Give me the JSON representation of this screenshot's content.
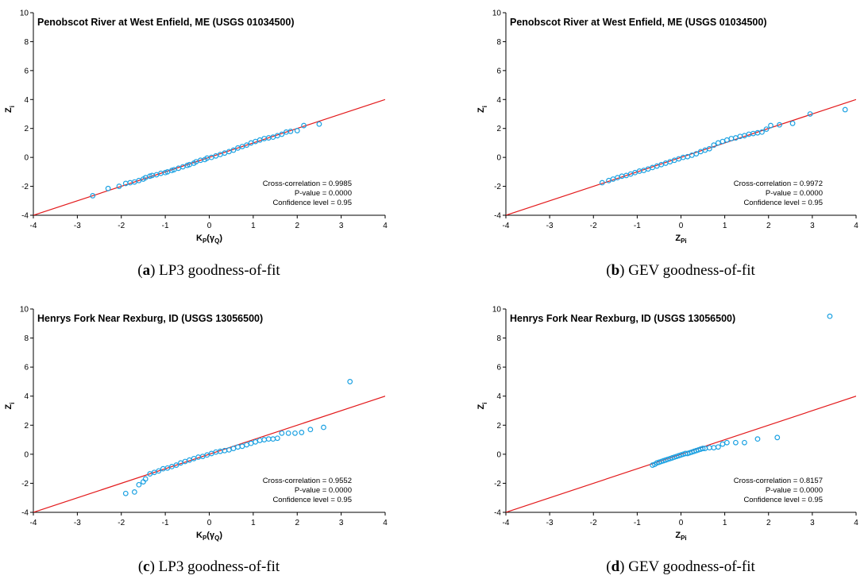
{
  "chart_data": [
    {
      "type": "scatter",
      "panel": "a",
      "title": "Penobscot River at West Enfield, ME (USGS 01034500)",
      "ylabel": "Z",
      "ylabel_sub": "i",
      "xlabel": "K",
      "xlabel_sub": "P",
      "xlabel_rest": "(γ",
      "xlabel_sub2": "Q",
      "xlabel_end": ")",
      "xlim": [
        -4,
        4
      ],
      "ylim": [
        -4,
        10
      ],
      "xticks": [
        "-4",
        "-3",
        "-2",
        "-1",
        "0",
        "1",
        "2",
        "3",
        "4"
      ],
      "yticks": [
        "-4",
        "-2",
        "0",
        "2",
        "4",
        "6",
        "8",
        "10"
      ],
      "stats": [
        "Cross-correlation = 0.9985",
        "P-value = 0.0000",
        "Confidence level = 0.95"
      ],
      "caption_label": "(a)",
      "caption_text": " LP3 goodness-of-fit",
      "ref_line": [
        [
          -4,
          -4
        ],
        [
          4,
          4
        ]
      ],
      "points": [
        [
          -2.65,
          -2.65
        ],
        [
          -2.3,
          -2.15
        ],
        [
          -2.05,
          -2.0
        ],
        [
          -1.9,
          -1.8
        ],
        [
          -1.8,
          -1.75
        ],
        [
          -1.7,
          -1.7
        ],
        [
          -1.6,
          -1.6
        ],
        [
          -1.5,
          -1.5
        ],
        [
          -1.45,
          -1.4
        ],
        [
          -1.35,
          -1.3
        ],
        [
          -1.3,
          -1.25
        ],
        [
          -1.2,
          -1.2
        ],
        [
          -1.1,
          -1.1
        ],
        [
          -1.0,
          -1.05
        ],
        [
          -0.95,
          -1.0
        ],
        [
          -0.85,
          -0.9
        ],
        [
          -0.8,
          -0.85
        ],
        [
          -0.7,
          -0.75
        ],
        [
          -0.6,
          -0.65
        ],
        [
          -0.5,
          -0.55
        ],
        [
          -0.45,
          -0.5
        ],
        [
          -0.35,
          -0.4
        ],
        [
          -0.3,
          -0.3
        ],
        [
          -0.2,
          -0.2
        ],
        [
          -0.1,
          -0.15
        ],
        [
          -0.05,
          -0.05
        ],
        [
          0.05,
          0.0
        ],
        [
          0.15,
          0.1
        ],
        [
          0.25,
          0.2
        ],
        [
          0.35,
          0.3
        ],
        [
          0.45,
          0.4
        ],
        [
          0.55,
          0.5
        ],
        [
          0.65,
          0.65
        ],
        [
          0.75,
          0.75
        ],
        [
          0.85,
          0.85
        ],
        [
          0.95,
          1.0
        ],
        [
          1.05,
          1.1
        ],
        [
          1.15,
          1.2
        ],
        [
          1.25,
          1.3
        ],
        [
          1.35,
          1.35
        ],
        [
          1.45,
          1.4
        ],
        [
          1.55,
          1.5
        ],
        [
          1.65,
          1.6
        ],
        [
          1.75,
          1.75
        ],
        [
          1.85,
          1.8
        ],
        [
          2.0,
          1.85
        ],
        [
          2.15,
          2.2
        ],
        [
          2.5,
          2.3
        ]
      ]
    },
    {
      "type": "scatter",
      "panel": "b",
      "title": "Penobscot River at West Enfield, ME (USGS 01034500)",
      "ylabel": "Z",
      "ylabel_sub": "i",
      "xlabel": "Z",
      "xlabel_sub": "Pi",
      "xlabel_rest": "",
      "xlabel_sub2": "",
      "xlabel_end": "",
      "xlim": [
        -4,
        4
      ],
      "ylim": [
        -4,
        10
      ],
      "xticks": [
        "-4",
        "-3",
        "-2",
        "-1",
        "0",
        "1",
        "2",
        "3",
        "4"
      ],
      "yticks": [
        "-4",
        "-2",
        "0",
        "2",
        "4",
        "6",
        "8",
        "10"
      ],
      "stats": [
        "Cross-correlation = 0.9972",
        "P-value = 0.0000",
        "Confidence level = 0.95"
      ],
      "caption_label": "(b)",
      "caption_text": " GEV goodness-of-fit",
      "ref_line": [
        [
          -4,
          -4
        ],
        [
          4,
          4
        ]
      ],
      "points": [
        [
          -1.8,
          -1.75
        ],
        [
          -1.65,
          -1.6
        ],
        [
          -1.55,
          -1.5
        ],
        [
          -1.45,
          -1.4
        ],
        [
          -1.35,
          -1.3
        ],
        [
          -1.25,
          -1.25
        ],
        [
          -1.15,
          -1.15
        ],
        [
          -1.05,
          -1.05
        ],
        [
          -0.95,
          -0.95
        ],
        [
          -0.85,
          -0.9
        ],
        [
          -0.75,
          -0.8
        ],
        [
          -0.65,
          -0.7
        ],
        [
          -0.55,
          -0.6
        ],
        [
          -0.45,
          -0.5
        ],
        [
          -0.35,
          -0.4
        ],
        [
          -0.25,
          -0.3
        ],
        [
          -0.15,
          -0.2
        ],
        [
          -0.05,
          -0.1
        ],
        [
          0.05,
          0.0
        ],
        [
          0.15,
          0.05
        ],
        [
          0.25,
          0.15
        ],
        [
          0.35,
          0.25
        ],
        [
          0.45,
          0.4
        ],
        [
          0.55,
          0.5
        ],
        [
          0.65,
          0.6
        ],
        [
          0.75,
          0.85
        ],
        [
          0.85,
          1.0
        ],
        [
          0.95,
          1.1
        ],
        [
          1.05,
          1.2
        ],
        [
          1.15,
          1.3
        ],
        [
          1.25,
          1.35
        ],
        [
          1.35,
          1.45
        ],
        [
          1.45,
          1.5
        ],
        [
          1.55,
          1.6
        ],
        [
          1.65,
          1.65
        ],
        [
          1.75,
          1.7
        ],
        [
          1.85,
          1.75
        ],
        [
          1.95,
          1.95
        ],
        [
          2.05,
          2.2
        ],
        [
          2.25,
          2.25
        ],
        [
          2.55,
          2.35
        ],
        [
          2.95,
          3.0
        ],
        [
          3.75,
          3.3
        ]
      ]
    },
    {
      "type": "scatter",
      "panel": "c",
      "title": "Henrys Fork Near Rexburg, ID (USGS 13056500)",
      "ylabel": "Z",
      "ylabel_sub": "i",
      "xlabel": "K",
      "xlabel_sub": "P",
      "xlabel_rest": "(γ",
      "xlabel_sub2": "Q",
      "xlabel_end": ")",
      "xlim": [
        -4,
        4
      ],
      "ylim": [
        -4,
        10
      ],
      "xticks": [
        "-4",
        "-3",
        "-2",
        "-1",
        "0",
        "1",
        "2",
        "3",
        "4"
      ],
      "yticks": [
        "-4",
        "-2",
        "0",
        "2",
        "4",
        "6",
        "8",
        "10"
      ],
      "stats": [
        "Cross-correlation = 0.9552",
        "P-value = 0.0000",
        "Confidence level = 0.95"
      ],
      "caption_label": "(c)",
      "caption_text": " LP3 goodness-of-fit",
      "ref_line": [
        [
          -4,
          -4
        ],
        [
          4,
          4
        ]
      ],
      "points": [
        [
          -1.9,
          -2.7
        ],
        [
          -1.7,
          -2.6
        ],
        [
          -1.6,
          -2.1
        ],
        [
          -1.5,
          -1.9
        ],
        [
          -1.45,
          -1.7
        ],
        [
          -1.35,
          -1.35
        ],
        [
          -1.25,
          -1.25
        ],
        [
          -1.15,
          -1.15
        ],
        [
          -1.05,
          -1.0
        ],
        [
          -0.95,
          -0.95
        ],
        [
          -0.85,
          -0.85
        ],
        [
          -0.75,
          -0.75
        ],
        [
          -0.65,
          -0.6
        ],
        [
          -0.55,
          -0.5
        ],
        [
          -0.45,
          -0.4
        ],
        [
          -0.35,
          -0.3
        ],
        [
          -0.25,
          -0.2
        ],
        [
          -0.15,
          -0.15
        ],
        [
          -0.05,
          -0.05
        ],
        [
          0.05,
          0.05
        ],
        [
          0.15,
          0.15
        ],
        [
          0.25,
          0.2
        ],
        [
          0.35,
          0.25
        ],
        [
          0.45,
          0.3
        ],
        [
          0.55,
          0.4
        ],
        [
          0.65,
          0.5
        ],
        [
          0.75,
          0.55
        ],
        [
          0.85,
          0.65
        ],
        [
          0.95,
          0.75
        ],
        [
          1.05,
          0.85
        ],
        [
          1.15,
          0.95
        ],
        [
          1.25,
          1.0
        ],
        [
          1.35,
          1.05
        ],
        [
          1.45,
          1.05
        ],
        [
          1.55,
          1.1
        ],
        [
          1.65,
          1.45
        ],
        [
          1.8,
          1.45
        ],
        [
          1.95,
          1.45
        ],
        [
          2.1,
          1.5
        ],
        [
          2.3,
          1.7
        ],
        [
          2.6,
          1.85
        ],
        [
          3.2,
          5.0
        ]
      ]
    },
    {
      "type": "scatter",
      "panel": "d",
      "title": "Henrys Fork Near Rexburg, ID (USGS 13056500)",
      "ylabel": "Z",
      "ylabel_sub": "i",
      "xlabel": "Z",
      "xlabel_sub": "Pi",
      "xlabel_rest": "",
      "xlabel_sub2": "",
      "xlabel_end": "",
      "xlim": [
        -4,
        4
      ],
      "ylim": [
        -4,
        10
      ],
      "xticks": [
        "-4",
        "-3",
        "-2",
        "-1",
        "0",
        "1",
        "2",
        "3",
        "4"
      ],
      "yticks": [
        "-4",
        "-2",
        "0",
        "2",
        "4",
        "6",
        "8",
        "10"
      ],
      "stats": [
        "Cross-correlation = 0.8157",
        "P-value = 0.0000",
        "Confidence level = 0.95"
      ],
      "caption_label": "(d)",
      "caption_text": " GEV goodness-of-fit",
      "ref_line": [
        [
          -4,
          -4
        ],
        [
          4,
          4
        ]
      ],
      "points": [
        [
          -0.65,
          -0.75
        ],
        [
          -0.6,
          -0.7
        ],
        [
          -0.55,
          -0.6
        ],
        [
          -0.5,
          -0.55
        ],
        [
          -0.45,
          -0.5
        ],
        [
          -0.4,
          -0.45
        ],
        [
          -0.35,
          -0.4
        ],
        [
          -0.3,
          -0.35
        ],
        [
          -0.25,
          -0.3
        ],
        [
          -0.2,
          -0.25
        ],
        [
          -0.15,
          -0.2
        ],
        [
          -0.1,
          -0.15
        ],
        [
          -0.05,
          -0.1
        ],
        [
          0.0,
          -0.05
        ],
        [
          0.05,
          0.0
        ],
        [
          0.1,
          0.05
        ],
        [
          0.15,
          0.05
        ],
        [
          0.2,
          0.1
        ],
        [
          0.25,
          0.15
        ],
        [
          0.3,
          0.2
        ],
        [
          0.35,
          0.25
        ],
        [
          0.4,
          0.3
        ],
        [
          0.45,
          0.35
        ],
        [
          0.5,
          0.4
        ],
        [
          0.55,
          0.4
        ],
        [
          0.65,
          0.45
        ],
        [
          0.75,
          0.45
        ],
        [
          0.85,
          0.5
        ],
        [
          0.95,
          0.7
        ],
        [
          1.05,
          0.8
        ],
        [
          1.25,
          0.8
        ],
        [
          1.45,
          0.8
        ],
        [
          1.75,
          1.05
        ],
        [
          2.2,
          1.15
        ],
        [
          3.4,
          9.5
        ]
      ]
    }
  ]
}
